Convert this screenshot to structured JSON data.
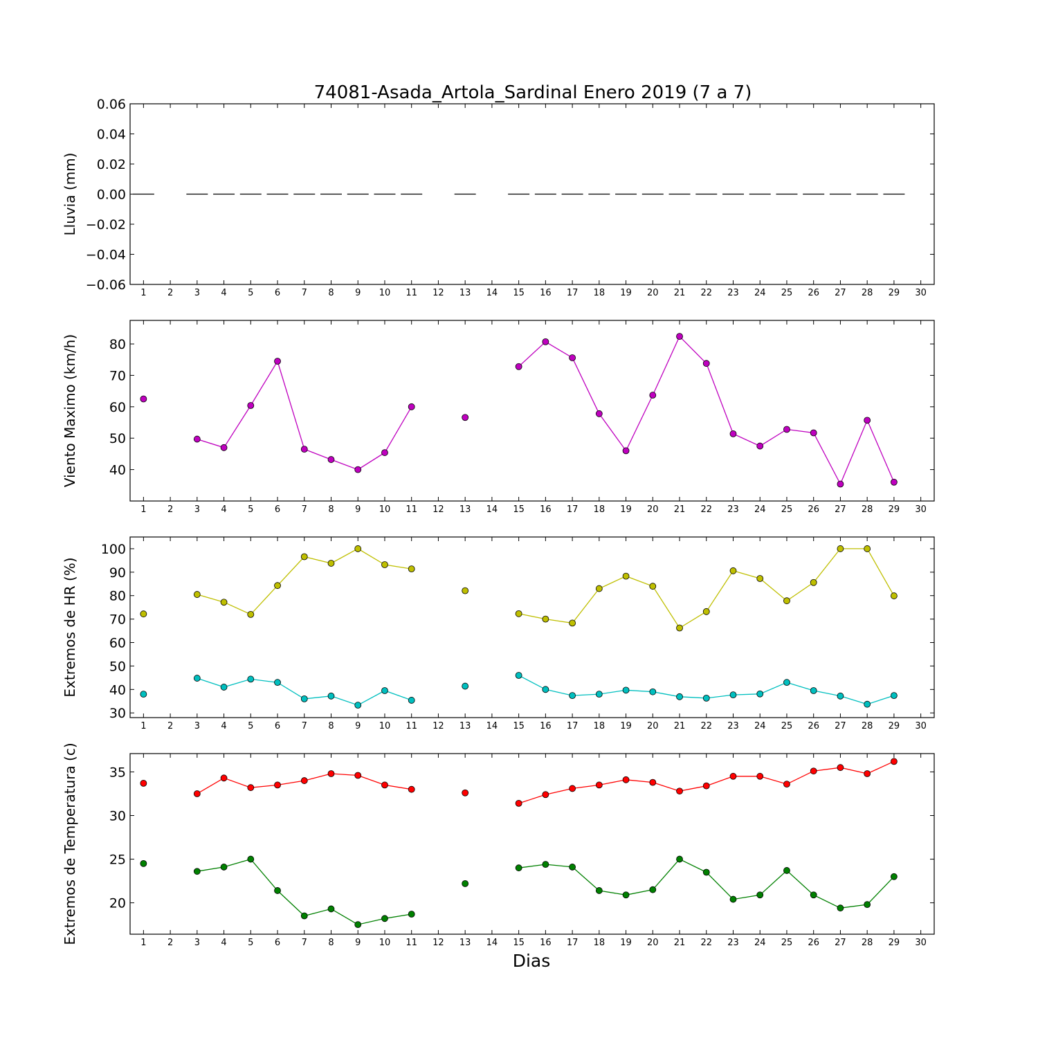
{
  "chart_data": [
    {
      "type": "line",
      "title": "74081-Asada_Artola_Sardinal Enero 2019  (7 a 7)",
      "xlabel": "",
      "ylabel": "Lluvia (mm)",
      "xlim": [
        0.5,
        30.5
      ],
      "ylim": [
        -0.06,
        0.06
      ],
      "yticks": [
        -0.06,
        -0.04,
        -0.02,
        0.0,
        0.02,
        0.04,
        0.06
      ],
      "ytick_labels": [
        "−0.06",
        "−0.04",
        "−0.02",
        "0.00",
        "0.02",
        "0.04",
        "0.06"
      ],
      "x": [
        1,
        2,
        3,
        4,
        5,
        6,
        7,
        8,
        9,
        10,
        11,
        12,
        13,
        14,
        15,
        16,
        17,
        18,
        19,
        20,
        21,
        22,
        23,
        24,
        25,
        26,
        27,
        28,
        29,
        30
      ],
      "series": [
        {
          "color": "#000000",
          "style": "bar-step",
          "values": [
            0,
            null,
            0,
            0,
            0,
            0,
            0,
            0,
            0,
            0,
            0,
            null,
            0,
            null,
            0,
            0,
            0,
            0,
            0,
            0,
            0,
            0,
            0,
            0,
            0,
            0,
            0,
            0,
            0,
            null
          ]
        }
      ]
    },
    {
      "type": "line",
      "title": "",
      "xlabel": "",
      "ylabel": "Viento Maximo (km/h)",
      "xlim": [
        0.5,
        30.5
      ],
      "ylim": [
        30,
        87.5
      ],
      "yticks": [
        40,
        50,
        60,
        70,
        80
      ],
      "ytick_labels": [
        "40",
        "50",
        "60",
        "70",
        "80"
      ],
      "x": [
        1,
        2,
        3,
        4,
        5,
        6,
        7,
        8,
        9,
        10,
        11,
        12,
        13,
        14,
        15,
        16,
        17,
        18,
        19,
        20,
        21,
        22,
        23,
        24,
        25,
        26,
        27,
        28,
        29,
        30
      ],
      "series": [
        {
          "color": "#bf00bf",
          "values": [
            62.5,
            null,
            49.7,
            47.0,
            60.4,
            74.5,
            46.5,
            43.2,
            40.0,
            45.4,
            60.0,
            null,
            56.6,
            null,
            72.8,
            80.7,
            75.6,
            57.8,
            46.0,
            63.7,
            82.4,
            73.8,
            51.4,
            47.5,
            52.8,
            51.7,
            35.4,
            55.7,
            36.0,
            null
          ]
        }
      ]
    },
    {
      "type": "line",
      "title": "",
      "xlabel": "",
      "ylabel": "Extremos de HR (%)",
      "xlim": [
        0.5,
        30.5
      ],
      "ylim": [
        28,
        105
      ],
      "yticks": [
        30,
        40,
        50,
        60,
        70,
        80,
        90,
        100
      ],
      "ytick_labels": [
        "30",
        "40",
        "50",
        "60",
        "70",
        "80",
        "90",
        "100"
      ],
      "x": [
        1,
        2,
        3,
        4,
        5,
        6,
        7,
        8,
        9,
        10,
        11,
        12,
        13,
        14,
        15,
        16,
        17,
        18,
        19,
        20,
        21,
        22,
        23,
        24,
        25,
        26,
        27,
        28,
        29,
        30
      ],
      "series": [
        {
          "color": "#bfbf00",
          "values": [
            72.2,
            null,
            80.5,
            77.2,
            72.0,
            84.3,
            96.6,
            93.8,
            100,
            93.2,
            91.4,
            null,
            82.1,
            null,
            72.3,
            70.0,
            68.3,
            83.0,
            88.3,
            84.0,
            66.2,
            73.2,
            90.6,
            87.3,
            77.8,
            85.6,
            100,
            100,
            79.9,
            null
          ]
        },
        {
          "color": "#00bfbf",
          "values": [
            38.0,
            null,
            44.8,
            41.0,
            44.4,
            43.0,
            36.0,
            37.2,
            33.3,
            39.5,
            35.4,
            null,
            41.4,
            null,
            46.0,
            40.0,
            37.4,
            38.0,
            39.7,
            39.0,
            36.9,
            36.3,
            37.7,
            38.1,
            43.0,
            39.5,
            37.2,
            33.7,
            37.4,
            null
          ]
        }
      ]
    },
    {
      "type": "line",
      "title": "",
      "xlabel": "Dias",
      "ylabel": "Extremos de Temperatura (c)",
      "xlim": [
        0.5,
        30.5
      ],
      "ylim": [
        16.4,
        37.1
      ],
      "yticks": [
        20,
        25,
        30,
        35
      ],
      "ytick_labels": [
        "20",
        "25",
        "30",
        "35"
      ],
      "x": [
        1,
        2,
        3,
        4,
        5,
        6,
        7,
        8,
        9,
        10,
        11,
        12,
        13,
        14,
        15,
        16,
        17,
        18,
        19,
        20,
        21,
        22,
        23,
        24,
        25,
        26,
        27,
        28,
        29,
        30
      ],
      "series": [
        {
          "color": "#ff0000",
          "values": [
            33.7,
            null,
            32.5,
            34.3,
            33.2,
            33.5,
            34.0,
            34.8,
            34.6,
            33.5,
            33.0,
            null,
            32.6,
            null,
            31.4,
            32.4,
            33.1,
            33.5,
            34.1,
            33.8,
            32.8,
            33.4,
            34.5,
            34.5,
            33.6,
            35.1,
            35.5,
            34.8,
            36.2,
            null
          ]
        },
        {
          "color": "#008000",
          "values": [
            24.5,
            null,
            23.6,
            24.1,
            25.0,
            21.4,
            18.5,
            19.3,
            17.5,
            18.2,
            18.7,
            null,
            22.2,
            null,
            24.0,
            24.4,
            24.1,
            21.4,
            20.9,
            21.5,
            25.0,
            23.5,
            20.4,
            20.9,
            23.7,
            20.9,
            19.4,
            19.8,
            23.0,
            null
          ]
        }
      ]
    }
  ]
}
